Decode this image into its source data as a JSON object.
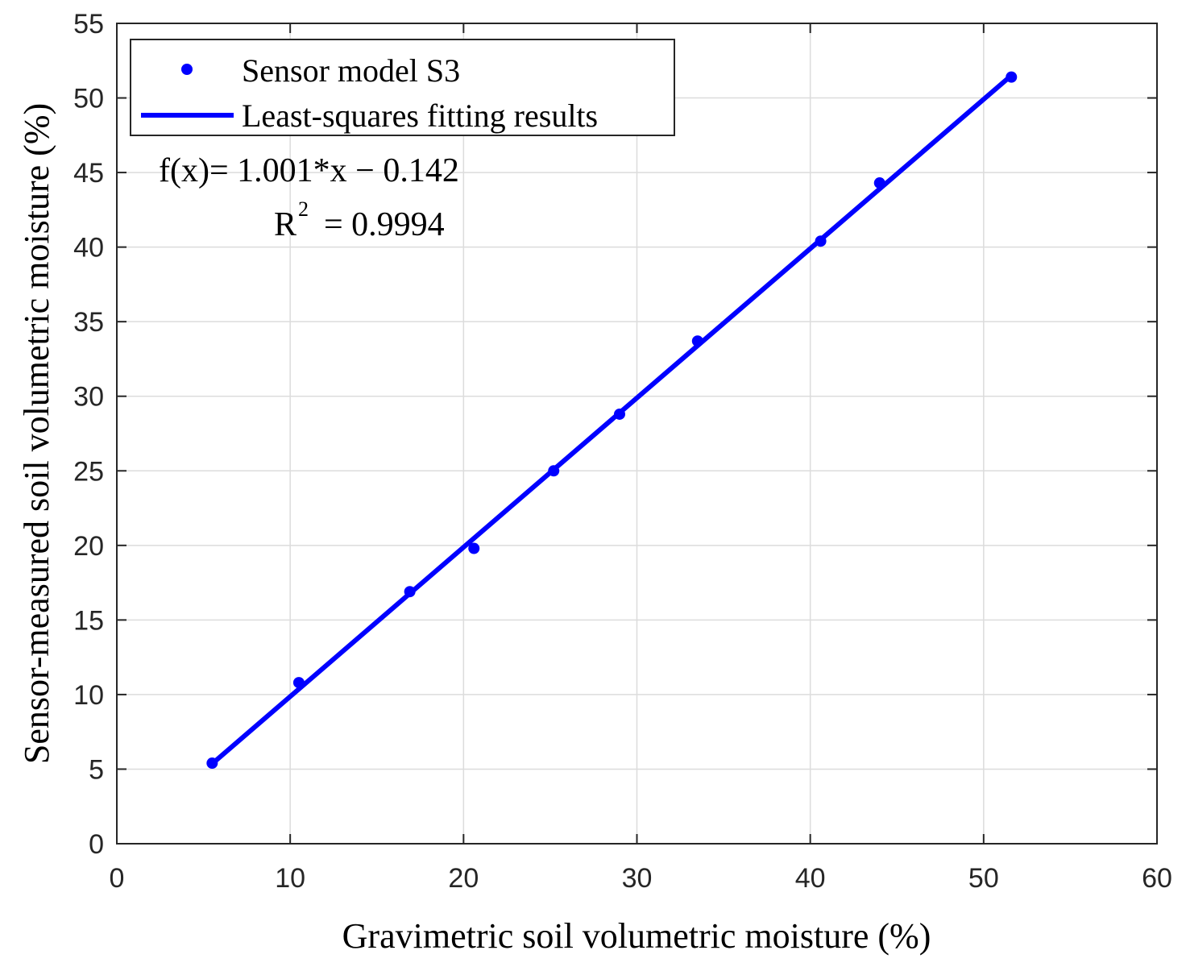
{
  "chart_data": {
    "type": "scatter",
    "xlabel": "Gravimetric soil volumetric moisture (%)",
    "ylabel": "Sensor-measured soil volumetric moisture (%)",
    "xlim": [
      0,
      60
    ],
    "ylim": [
      0,
      55
    ],
    "x_ticks": [
      0,
      10,
      20,
      30,
      40,
      50,
      60
    ],
    "y_ticks": [
      0,
      5,
      10,
      15,
      20,
      25,
      30,
      35,
      40,
      45,
      50,
      55
    ],
    "grid": true,
    "legend_position": "top-left",
    "series": [
      {
        "name": "Sensor model S3",
        "kind": "points",
        "color": "#0000ff",
        "x": [
          5.5,
          10.5,
          16.9,
          20.6,
          25.2,
          29.0,
          33.5,
          40.6,
          44.0,
          51.6
        ],
        "y": [
          5.4,
          10.8,
          16.9,
          19.8,
          25.0,
          28.8,
          33.7,
          40.4,
          44.3,
          51.4
        ]
      },
      {
        "name": "Least-squares fitting results",
        "kind": "line",
        "color": "#0000ff",
        "slope": 1.001,
        "intercept": -0.142,
        "x_range": [
          5.5,
          51.6
        ]
      }
    ],
    "annotations": {
      "equation": "f(x)= 1.001*x − 0.142",
      "r2_symbol": "R",
      "r2_exponent": "2",
      "r2_value": "= 0.9994"
    }
  }
}
